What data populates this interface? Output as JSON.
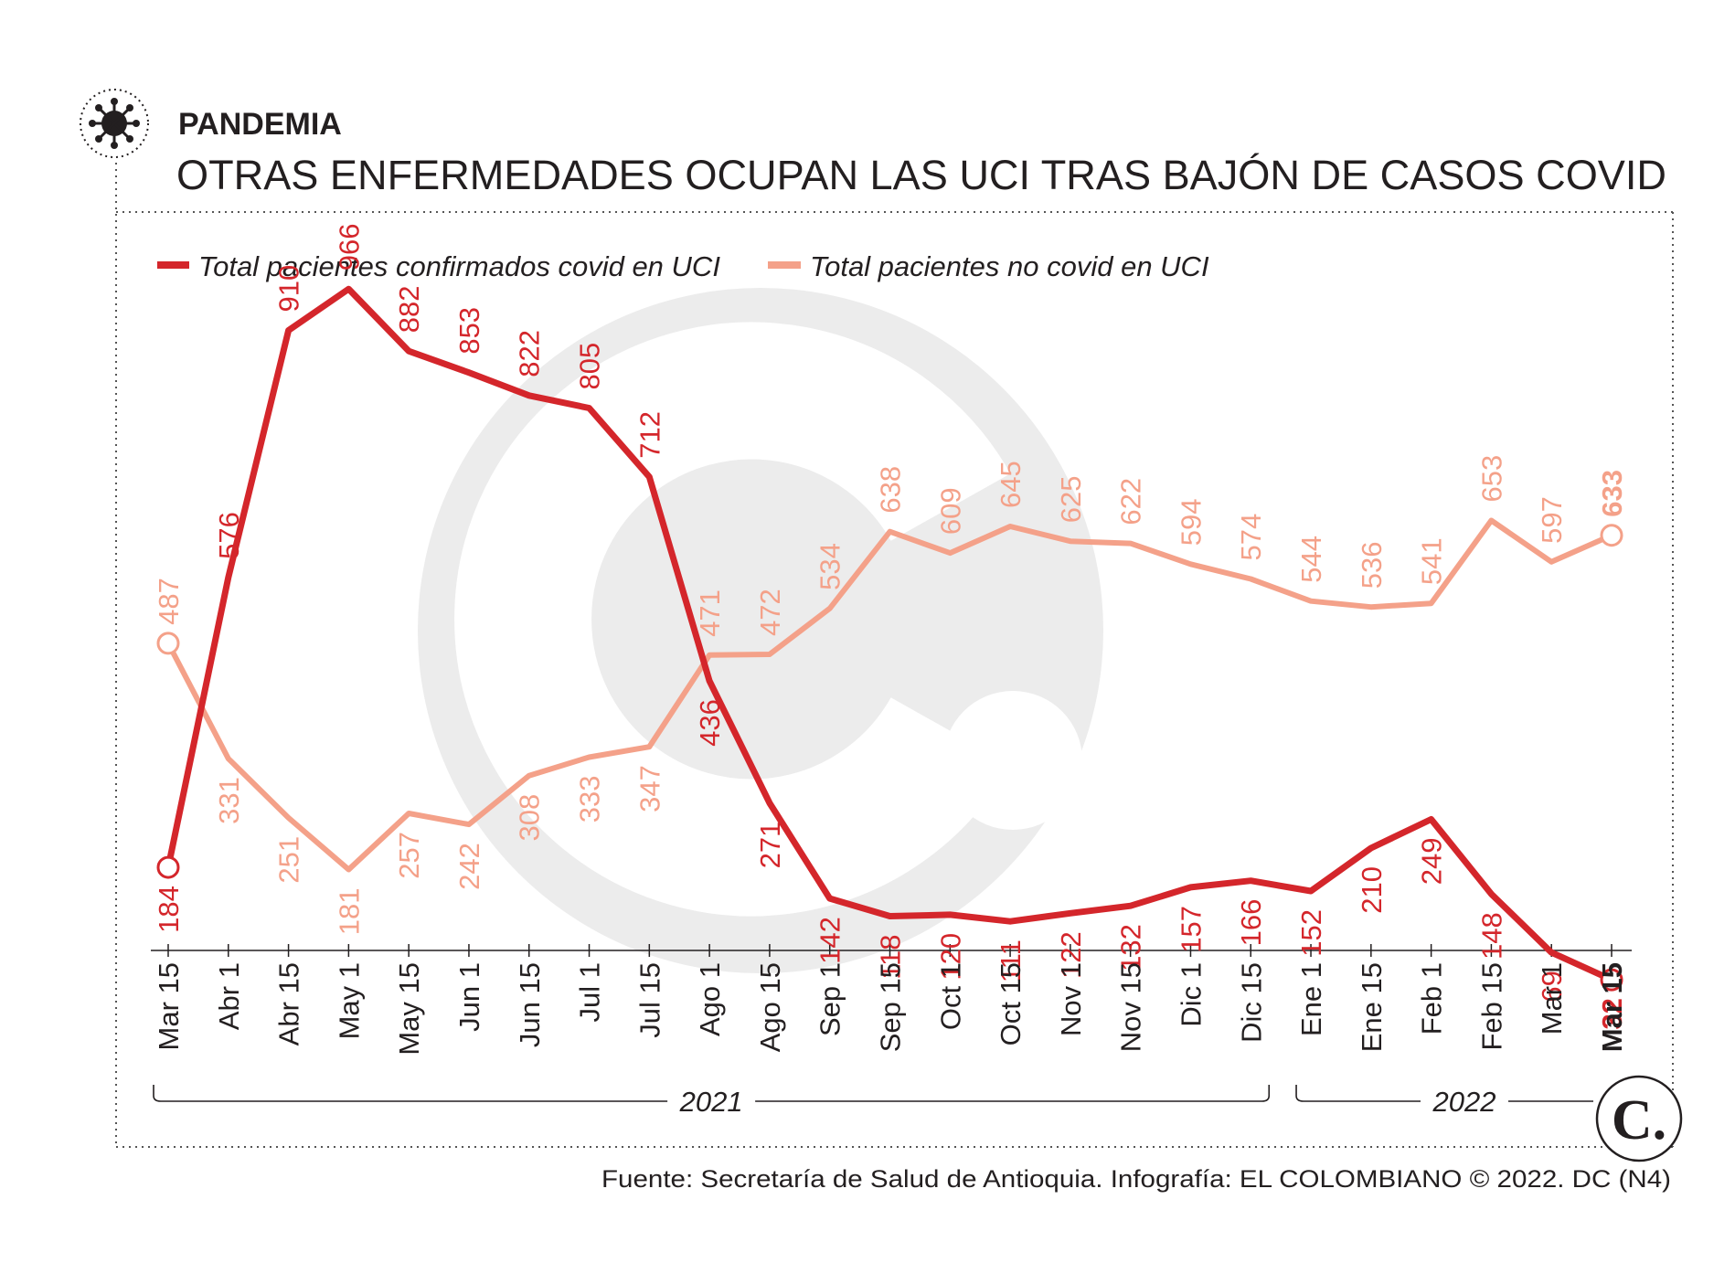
{
  "header": {
    "kicker": "PANDEMIA",
    "title": "OTRAS ENFERMEDADES OCUPAN LAS UCI TRAS BAJÓN DE CASOS COVID"
  },
  "footer": {
    "source": "Fuente: Secretaría de Salud de Antioquia. Infografía: EL COLOMBIANO © 2022. DC (N4)",
    "logo_letter": "C."
  },
  "colors": {
    "covid": "#d4262b",
    "no_covid": "#f4a189",
    "text": "#231f20",
    "watermark": "#ececec"
  },
  "icons": [
    "virus-icon",
    "el-colombiano-logo-icon"
  ],
  "chart_data": {
    "type": "line",
    "title": "OTRAS ENFERMEDADES OCUPAN LAS UCI TRAS BAJÓN DE CASOS COVID",
    "xlabel": "",
    "ylabel": "",
    "ylim": [
      0,
      1000
    ],
    "grid": false,
    "legend_position": "top-left",
    "categories": [
      "Mar 15",
      "Abr 1",
      "Abr 15",
      "May 1",
      "May 15",
      "Jun 1",
      "Jun 15",
      "Jul 1",
      "Jul 15",
      "Ago 1",
      "Ago 15",
      "Sep 1",
      "Sep 15",
      "Oct 1",
      "Oct 15",
      "Nov 1",
      "Nov 15",
      "Dic 1",
      "Dic 15",
      "Ene 1",
      "Ene 15",
      "Feb 1",
      "Feb 15",
      "Mar 1",
      "Mar 15"
    ],
    "year_groups": [
      {
        "label": "2021",
        "from": "Mar 15",
        "to": "Dic 15"
      },
      {
        "label": "2022",
        "from": "Ene 1",
        "to": "Mar 15"
      }
    ],
    "series": [
      {
        "name": "Total pacientes confirmados covid en UCI",
        "values": [
          184,
          576,
          910,
          966,
          882,
          853,
          822,
          805,
          712,
          436,
          271,
          142,
          118,
          120,
          111,
          122,
          132,
          157,
          166,
          152,
          210,
          249,
          148,
          69,
          32
        ]
      },
      {
        "name": "Total pacientes no covid en UCI",
        "values": [
          487,
          331,
          251,
          181,
          257,
          242,
          308,
          333,
          347,
          471,
          472,
          534,
          638,
          609,
          645,
          625,
          622,
          594,
          574,
          544,
          536,
          541,
          653,
          597,
          633
        ]
      }
    ]
  }
}
